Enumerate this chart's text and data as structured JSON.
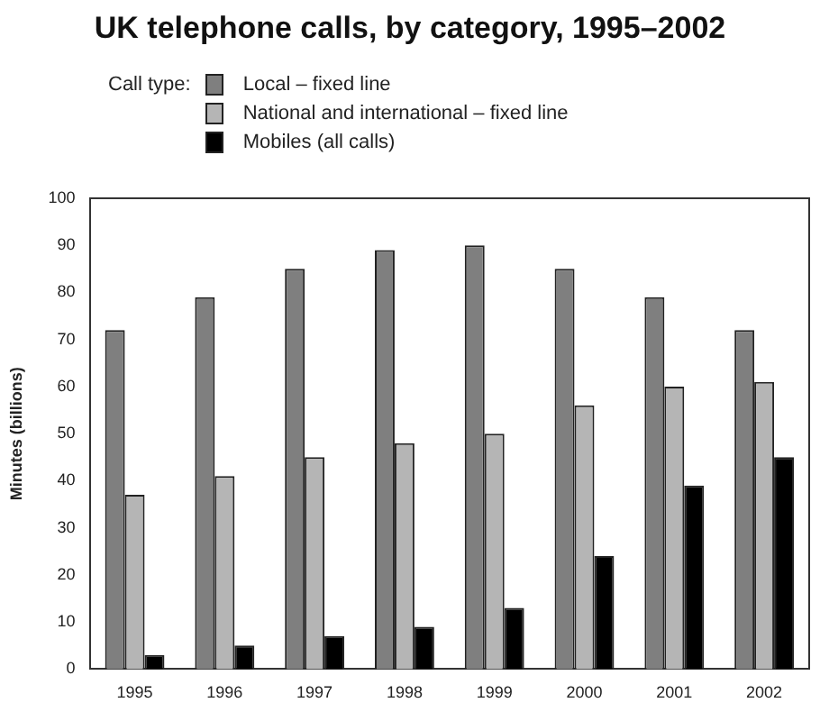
{
  "chart_data": {
    "type": "bar",
    "title": "UK telephone calls, by category, 1995–2002",
    "legend_title": "Call type:",
    "ylabel": "Minutes (billions)",
    "categories": [
      "1995",
      "1996",
      "1997",
      "1998",
      "1999",
      "2000",
      "2001",
      "2002"
    ],
    "series": [
      {
        "name": "Local – fixed line",
        "color": "#7f7f7f",
        "values": [
          72,
          79,
          85,
          89,
          90,
          85,
          79,
          72
        ]
      },
      {
        "name": "National and international – fixed line",
        "color": "#b5b5b5",
        "values": [
          37,
          41,
          45,
          48,
          50,
          56,
          60,
          61
        ]
      },
      {
        "name": "Mobiles (all calls)",
        "color": "#000000",
        "values": [
          3,
          5,
          7,
          9,
          13,
          24,
          39,
          45
        ]
      }
    ],
    "ylim": [
      0,
      100
    ],
    "yticks": [
      0,
      10,
      20,
      30,
      40,
      50,
      60,
      70,
      80,
      90,
      100
    ],
    "grid": false,
    "legend": "top left"
  }
}
